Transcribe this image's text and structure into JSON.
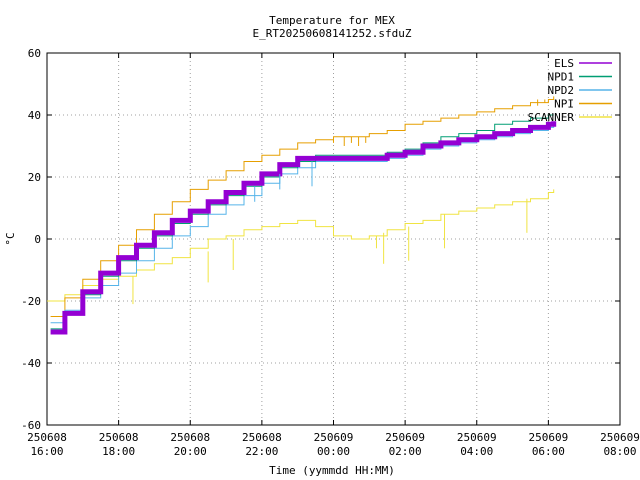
{
  "chart_data": {
    "type": "line",
    "title": "Temperature for MEX",
    "subtitle": "E_RT20250608141252.sfduZ",
    "xlabel": "Time (yymmdd HH:MM)",
    "ylabel": "°C",
    "xlim": [
      16,
      32
    ],
    "ylim": [
      -60,
      60
    ],
    "grid": true,
    "legend_position": "top-right",
    "y_ticks": [
      -60,
      -40,
      -20,
      0,
      20,
      40,
      60
    ],
    "x_ticks": [
      {
        "value": 16,
        "date": "250608",
        "time": "16:00"
      },
      {
        "value": 18,
        "date": "250608",
        "time": "18:00"
      },
      {
        "value": 20,
        "date": "250608",
        "time": "20:00"
      },
      {
        "value": 22,
        "date": "250608",
        "time": "22:00"
      },
      {
        "value": 24,
        "date": "250609",
        "time": "00:00"
      },
      {
        "value": 26,
        "date": "250609",
        "time": "02:00"
      },
      {
        "value": 28,
        "date": "250609",
        "time": "04:00"
      },
      {
        "value": 30,
        "date": "250609",
        "time": "06:00"
      },
      {
        "value": 32,
        "date": "250609",
        "time": "08:00"
      }
    ],
    "series": [
      {
        "name": "ELS",
        "color": "#9400d3",
        "width": 5,
        "x": [
          16.1,
          16.5,
          17.0,
          17.5,
          18.0,
          18.5,
          19.0,
          19.5,
          20.0,
          20.5,
          21.0,
          21.5,
          22.0,
          22.5,
          23.0,
          23.5,
          24.0,
          24.5,
          25.0,
          25.5,
          26.0,
          26.5,
          27.0,
          27.5,
          28.0,
          28.5,
          29.0,
          29.5,
          30.0,
          30.15
        ],
        "y": [
          -30,
          -24,
          -17,
          -11,
          -6,
          -2,
          2,
          6,
          9,
          12,
          15,
          18,
          21,
          24,
          26,
          26,
          26,
          26,
          26,
          27,
          28,
          30,
          31,
          32,
          33,
          34,
          35,
          36,
          37,
          38
        ]
      },
      {
        "name": "NPD1",
        "color": "#009e73",
        "width": 1,
        "x": [
          16.1,
          16.5,
          17.0,
          17.5,
          18.0,
          18.5,
          19.0,
          19.5,
          20.0,
          20.5,
          21.0,
          21.5,
          22.0,
          22.5,
          23.0,
          23.5,
          24.0,
          24.5,
          25.0,
          25.5,
          26.0,
          26.5,
          27.0,
          27.5,
          28.0,
          28.5,
          29.0,
          29.5,
          30.0,
          30.15
        ],
        "y": [
          -29,
          -24,
          -18,
          -12,
          -7,
          -3,
          1,
          5,
          8,
          11,
          14,
          17,
          20,
          23,
          25,
          27,
          27,
          27,
          27,
          28,
          29,
          31,
          33,
          34,
          35,
          37,
          38,
          39,
          40,
          40
        ]
      },
      {
        "name": "NPD2",
        "color": "#56b4e9",
        "width": 1,
        "x": [
          16.1,
          16.5,
          17.0,
          17.5,
          18.0,
          18.5,
          19.0,
          19.5,
          20.0,
          20.5,
          21.0,
          21.5,
          22.0,
          22.5,
          23.0,
          23.5,
          24.0,
          24.5,
          25.0,
          25.5,
          26.0,
          26.5,
          27.0,
          27.5,
          28.0,
          28.5,
          29.0,
          29.5,
          30.0,
          30.15
        ],
        "y": [
          -27,
          -23,
          -19,
          -15,
          -11,
          -7,
          -3,
          1,
          4,
          8,
          11,
          14,
          18,
          21,
          23,
          25,
          25,
          25,
          25,
          26,
          27,
          29,
          30,
          31,
          32,
          33,
          34,
          35,
          36,
          37
        ]
      },
      {
        "name": "NPI",
        "color": "#e69f00",
        "width": 1,
        "x": [
          16.1,
          16.5,
          17.0,
          17.5,
          18.0,
          18.5,
          19.0,
          19.5,
          20.0,
          20.5,
          21.0,
          21.5,
          22.0,
          22.5,
          23.0,
          23.5,
          24.0,
          24.5,
          25.0,
          25.5,
          26.0,
          26.5,
          27.0,
          27.5,
          28.0,
          28.5,
          29.0,
          29.5,
          30.0,
          30.15
        ],
        "y": [
          -25,
          -19,
          -13,
          -7,
          -2,
          3,
          8,
          12,
          16,
          19,
          22,
          25,
          27,
          29,
          31,
          32,
          33,
          33,
          34,
          35,
          37,
          38,
          39,
          40,
          41,
          42,
          43,
          44,
          45,
          46
        ]
      },
      {
        "name": "SCANNER",
        "color": "#f0e442",
        "width": 1,
        "x": [
          16.0,
          16.5,
          17.0,
          17.5,
          18.0,
          18.5,
          19.0,
          19.5,
          20.0,
          20.5,
          21.0,
          21.5,
          22.0,
          22.5,
          23.0,
          23.5,
          24.0,
          24.5,
          25.0,
          25.5,
          26.0,
          26.5,
          27.0,
          27.5,
          28.0,
          28.5,
          29.0,
          29.5,
          30.0,
          30.15
        ],
        "y": [
          -20,
          -18,
          -15,
          -13,
          -12,
          -10,
          -8,
          -6,
          -3,
          0,
          1,
          3,
          4,
          5,
          6,
          4,
          1,
          0,
          1,
          3,
          5,
          6,
          8,
          9,
          10,
          11,
          12,
          13,
          15,
          16
        ]
      }
    ],
    "spikes": [
      {
        "series": "SCANNER",
        "x": [
          18.4,
          20.5,
          21.2,
          25.2,
          25.4,
          26.1,
          27.1,
          29.4
        ],
        "from": [
          -12,
          -4,
          0,
          1,
          2,
          4,
          8,
          13
        ],
        "to": [
          -21,
          -14,
          -10,
          -3,
          -8,
          -7,
          -3,
          2
        ]
      },
      {
        "series": "NPI",
        "x": [
          24.0,
          24.3,
          24.5,
          24.7,
          24.9,
          29.7,
          29.9
        ],
        "from": [
          33,
          33,
          33,
          33,
          33,
          45,
          45
        ],
        "to": [
          31,
          30,
          31,
          30,
          31,
          43,
          44
        ]
      },
      {
        "series": "NPD2",
        "x": [
          21.8,
          22.5,
          23.4
        ],
        "from": [
          17,
          21,
          25
        ],
        "to": [
          12,
          16,
          17
        ]
      }
    ]
  }
}
